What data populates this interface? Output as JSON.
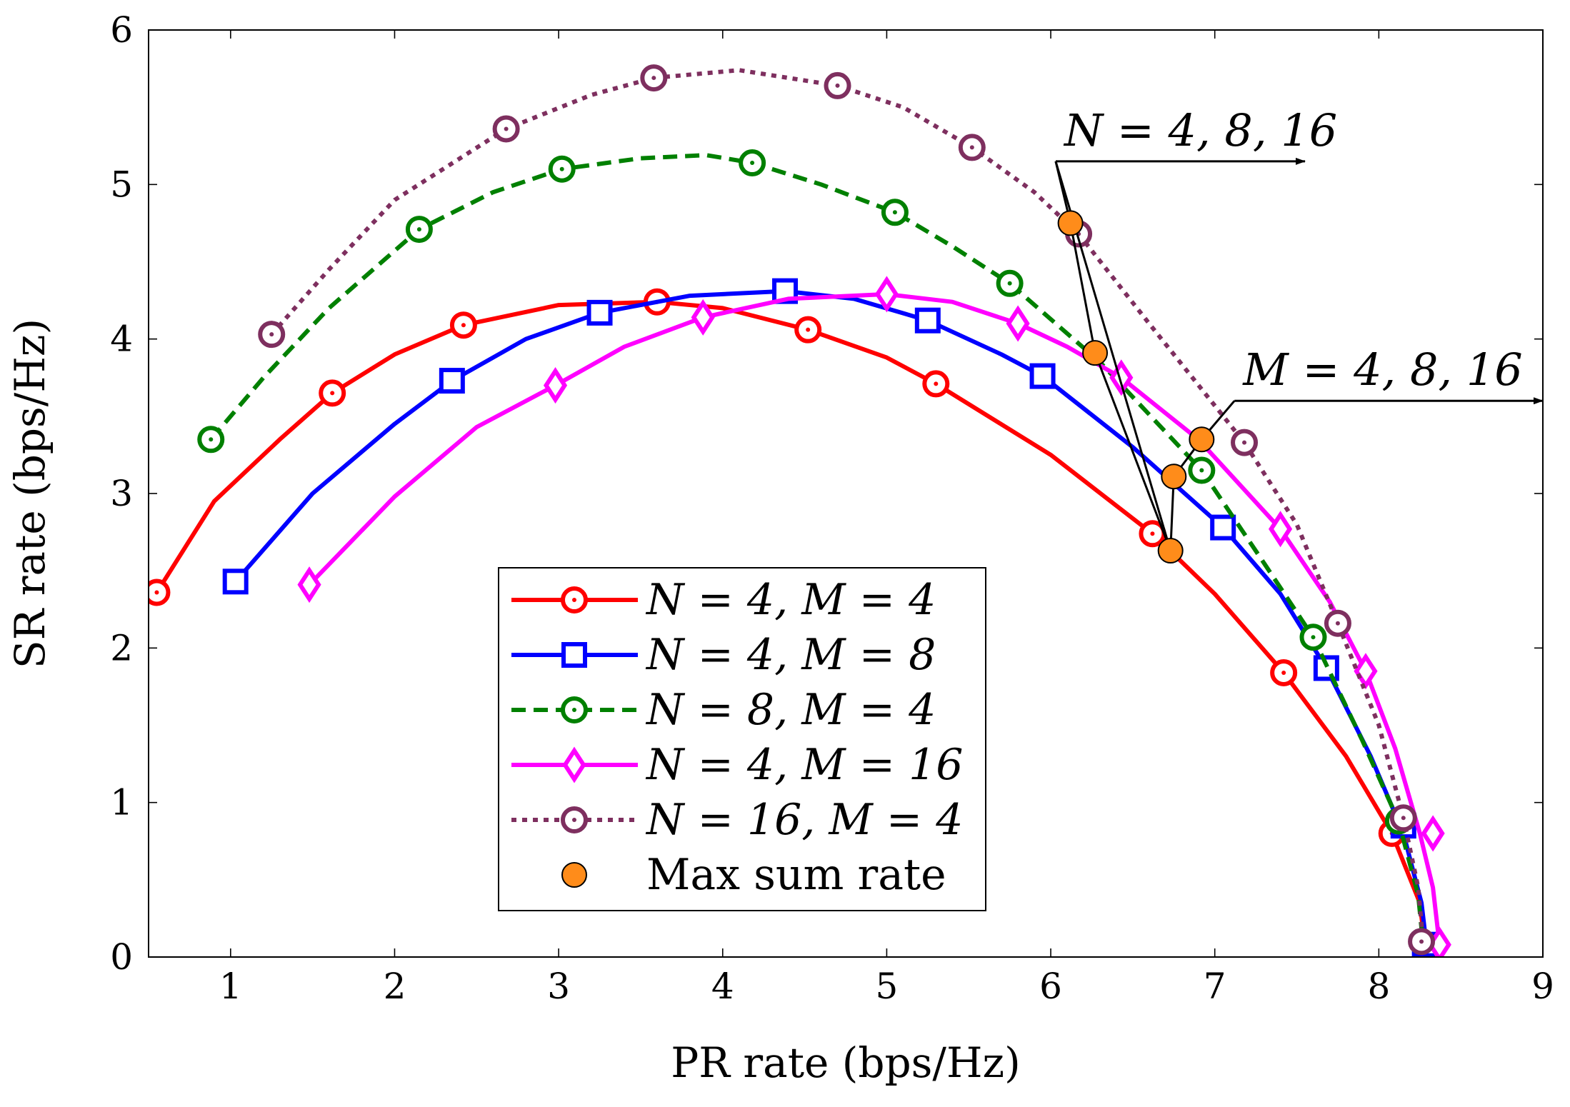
{
  "chart_data": {
    "type": "line",
    "title": "",
    "xlabel": "PR rate (bps/Hz)",
    "ylabel": "SR rate (bps/Hz)",
    "xlim": [
      0.5,
      9
    ],
    "ylim": [
      0,
      6
    ],
    "xticks": [
      1,
      2,
      3,
      4,
      5,
      6,
      7,
      8,
      9
    ],
    "yticks": [
      0,
      1,
      2,
      3,
      4,
      5,
      6
    ],
    "xtick_labels": [
      "1",
      "2",
      "3",
      "4",
      "5",
      "6",
      "7",
      "8",
      "9"
    ],
    "ytick_labels": [
      "0",
      "1",
      "2",
      "3",
      "4",
      "5",
      "6"
    ],
    "grid": false,
    "legend_position": "bottom-center",
    "series": [
      {
        "name": "N = 4, M = 4",
        "color": "#ff0000",
        "dash": "solid",
        "marker": "circle",
        "curve": [
          [
            0.55,
            2.36
          ],
          [
            0.9,
            2.95
          ],
          [
            1.3,
            3.35
          ],
          [
            1.62,
            3.65
          ],
          [
            2,
            3.9
          ],
          [
            2.42,
            4.09
          ],
          [
            3,
            4.22
          ],
          [
            3.6,
            4.24
          ],
          [
            4,
            4.2
          ],
          [
            4.52,
            4.06
          ],
          [
            5,
            3.88
          ],
          [
            5.3,
            3.71
          ],
          [
            6,
            3.25
          ],
          [
            6.62,
            2.74
          ],
          [
            7,
            2.35
          ],
          [
            7.42,
            1.84
          ],
          [
            7.8,
            1.3
          ],
          [
            8.08,
            0.8
          ],
          [
            8.25,
            0.35
          ],
          [
            8.28,
            0.08
          ]
        ],
        "markers": [
          [
            0.55,
            2.36
          ],
          [
            1.62,
            3.65
          ],
          [
            2.42,
            4.09
          ],
          [
            3.6,
            4.24
          ],
          [
            4.52,
            4.06
          ],
          [
            5.3,
            3.71
          ],
          [
            6.62,
            2.74
          ],
          [
            7.42,
            1.84
          ],
          [
            8.08,
            0.8
          ]
        ]
      },
      {
        "name": "N = 4, M = 8",
        "color": "#0000ff",
        "dash": "solid",
        "marker": "square",
        "curve": [
          [
            1.03,
            2.43
          ],
          [
            1.5,
            3.0
          ],
          [
            2,
            3.45
          ],
          [
            2.35,
            3.73
          ],
          [
            2.8,
            4.0
          ],
          [
            3.25,
            4.17
          ],
          [
            3.8,
            4.28
          ],
          [
            4.38,
            4.31
          ],
          [
            4.8,
            4.26
          ],
          [
            5.25,
            4.12
          ],
          [
            5.7,
            3.9
          ],
          [
            5.95,
            3.76
          ],
          [
            6.5,
            3.3
          ],
          [
            7.05,
            2.78
          ],
          [
            7.4,
            2.35
          ],
          [
            7.68,
            1.87
          ],
          [
            7.95,
            1.3
          ],
          [
            8.15,
            0.8
          ],
          [
            8.26,
            0.35
          ],
          [
            8.29,
            0.08
          ]
        ],
        "markers": [
          [
            1.03,
            2.43
          ],
          [
            2.35,
            3.73
          ],
          [
            3.25,
            4.17
          ],
          [
            4.38,
            4.31
          ],
          [
            5.25,
            4.12
          ],
          [
            5.95,
            3.76
          ],
          [
            7.05,
            2.78
          ],
          [
            7.68,
            1.87
          ],
          [
            8.15,
            0.85
          ],
          [
            8.28,
            0.08
          ]
        ]
      },
      {
        "name": "N = 8, M = 4",
        "color": "#008000",
        "dash": "dashed",
        "marker": "circle",
        "curve": [
          [
            0.88,
            3.35
          ],
          [
            1.2,
            3.75
          ],
          [
            1.6,
            4.2
          ],
          [
            2.15,
            4.71
          ],
          [
            2.6,
            4.95
          ],
          [
            3.02,
            5.1
          ],
          [
            3.5,
            5.17
          ],
          [
            3.9,
            5.19
          ],
          [
            4.18,
            5.14
          ],
          [
            4.6,
            5.0
          ],
          [
            5.05,
            4.82
          ],
          [
            5.4,
            4.6
          ],
          [
            5.75,
            4.36
          ],
          [
            6.3,
            3.85
          ],
          [
            6.92,
            3.15
          ],
          [
            7.3,
            2.55
          ],
          [
            7.6,
            2.07
          ],
          [
            7.9,
            1.4
          ],
          [
            8.12,
            0.88
          ],
          [
            8.24,
            0.4
          ],
          [
            8.27,
            0.08
          ]
        ],
        "markers": [
          [
            0.88,
            3.35
          ],
          [
            2.15,
            4.71
          ],
          [
            3.02,
            5.1
          ],
          [
            4.18,
            5.14
          ],
          [
            5.05,
            4.82
          ],
          [
            5.75,
            4.36
          ],
          [
            6.92,
            3.15
          ],
          [
            7.6,
            2.07
          ],
          [
            8.12,
            0.88
          ]
        ]
      },
      {
        "name": "N = 4, M = 16",
        "color": "#ff00ff",
        "dash": "solid",
        "marker": "diamond",
        "curve": [
          [
            1.48,
            2.41
          ],
          [
            2,
            2.98
          ],
          [
            2.5,
            3.43
          ],
          [
            2.98,
            3.7
          ],
          [
            3.4,
            3.95
          ],
          [
            3.88,
            4.14
          ],
          [
            4.4,
            4.26
          ],
          [
            5.0,
            4.29
          ],
          [
            5.4,
            4.24
          ],
          [
            5.8,
            4.1
          ],
          [
            6.1,
            3.95
          ],
          [
            6.43,
            3.75
          ],
          [
            6.9,
            3.35
          ],
          [
            7.4,
            2.77
          ],
          [
            7.7,
            2.3
          ],
          [
            7.92,
            1.85
          ],
          [
            8.1,
            1.35
          ],
          [
            8.25,
            0.8
          ],
          [
            8.33,
            0.45
          ],
          [
            8.37,
            0.08
          ]
        ],
        "markers": [
          [
            1.48,
            2.41
          ],
          [
            2.98,
            3.7
          ],
          [
            3.88,
            4.14
          ],
          [
            5.0,
            4.29
          ],
          [
            5.8,
            4.1
          ],
          [
            6.43,
            3.75
          ],
          [
            7.4,
            2.77
          ],
          [
            7.92,
            1.85
          ],
          [
            8.33,
            0.8
          ],
          [
            8.37,
            0.08
          ]
        ]
      },
      {
        "name": "N = 16, M = 4",
        "color": "#7e2f5f",
        "dash": "dotted",
        "marker": "circle",
        "curve": [
          [
            1.25,
            4.03
          ],
          [
            1.6,
            4.45
          ],
          [
            2.0,
            4.9
          ],
          [
            2.68,
            5.36
          ],
          [
            3.2,
            5.58
          ],
          [
            3.58,
            5.69
          ],
          [
            4.1,
            5.74
          ],
          [
            4.7,
            5.64
          ],
          [
            5.1,
            5.5
          ],
          [
            5.52,
            5.24
          ],
          [
            5.9,
            4.95
          ],
          [
            6.17,
            4.68
          ],
          [
            6.6,
            4.1
          ],
          [
            7.18,
            3.33
          ],
          [
            7.5,
            2.8
          ],
          [
            7.75,
            2.16
          ],
          [
            8.0,
            1.5
          ],
          [
            8.15,
            0.9
          ],
          [
            8.24,
            0.45
          ],
          [
            8.27,
            0.1
          ]
        ],
        "markers": [
          [
            1.25,
            4.03
          ],
          [
            2.68,
            5.36
          ],
          [
            3.58,
            5.69
          ],
          [
            4.7,
            5.64
          ],
          [
            5.52,
            5.24
          ],
          [
            6.17,
            4.68
          ],
          [
            7.18,
            3.33
          ],
          [
            7.75,
            2.16
          ],
          [
            8.15,
            0.9
          ],
          [
            8.26,
            0.1
          ]
        ]
      }
    ],
    "max_sum_rate": {
      "name": "Max sum rate",
      "color": "#ff8c1a",
      "points": [
        [
          6.73,
          2.63
        ],
        [
          6.75,
          3.11
        ],
        [
          6.92,
          3.35
        ],
        [
          6.12,
          4.75
        ],
        [
          6.27,
          3.91
        ]
      ]
    },
    "annotations": [
      {
        "text": "N = 4, 8, 16",
        "arrow_from": [
          6.03,
          5.15
        ],
        "arrow_to": [
          7.55,
          5.15
        ],
        "leaders": [
          [
            [
              6.03,
              5.15
            ],
            [
              6.73,
              2.63
            ]
          ]
        ]
      },
      {
        "text": "M = 4, 8, 16",
        "arrow_from": [
          7.12,
          3.6
        ],
        "arrow_to": [
          9.0,
          3.6
        ],
        "leaders": [
          [
            [
              7.12,
              3.6
            ],
            [
              6.92,
              3.35
            ]
          ],
          [
            [
              6.92,
              3.35
            ],
            [
              6.75,
              3.11
            ]
          ],
          [
            [
              6.75,
              3.11
            ],
            [
              6.73,
              2.63
            ]
          ]
        ]
      }
    ]
  }
}
